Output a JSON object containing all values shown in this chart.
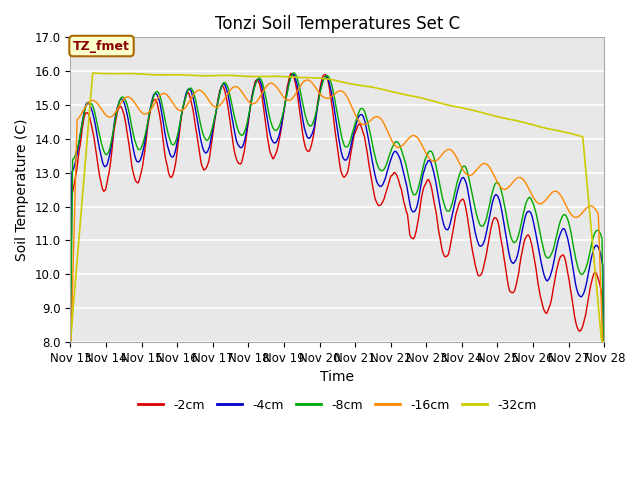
{
  "title": "Tonzi Soil Temperatures Set C",
  "xlabel": "Time",
  "ylabel": "Soil Temperature (C)",
  "ylim": [
    8.0,
    17.0
  ],
  "yticks": [
    8.0,
    9.0,
    10.0,
    11.0,
    12.0,
    13.0,
    14.0,
    15.0,
    16.0,
    17.0
  ],
  "xtick_labels": [
    "Nov 13",
    "Nov 14",
    "Nov 15",
    "Nov 16",
    "Nov 17",
    "Nov 18",
    "Nov 19",
    "Nov 20",
    "Nov 21",
    "Nov 22",
    "Nov 23",
    "Nov 24",
    "Nov 25",
    "Nov 26",
    "Nov 27",
    "Nov 28"
  ],
  "series_colors": [
    "#dd0000",
    "#0000cc",
    "#00aa00",
    "#ff8800",
    "#cccc00"
  ],
  "series_labels": [
    "-2cm",
    "-4cm",
    "-8cm",
    "-16cm",
    "-32cm"
  ],
  "annotation_text": "TZ_fmet",
  "annotation_color": "#880000",
  "annotation_bg": "#ffffcc",
  "annotation_border": "#aa6600",
  "plot_bg": "#e8e8e8",
  "grid_color": "#ffffff",
  "title_fontsize": 12,
  "axis_label_fontsize": 10,
  "tick_fontsize": 8.5
}
